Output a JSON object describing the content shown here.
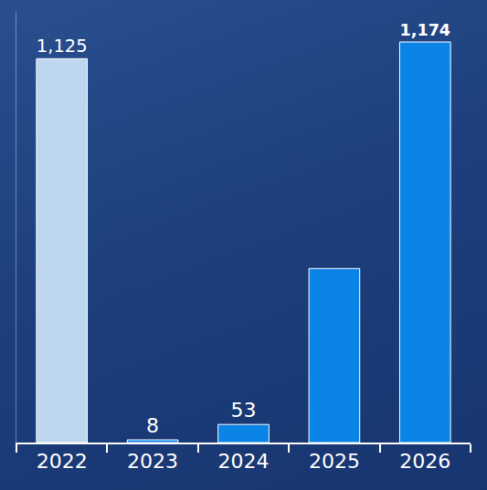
{
  "chart_data": {
    "type": "bar",
    "categories": [
      "2022",
      "2023",
      "2024",
      "2025",
      "2026"
    ],
    "values": [
      1125,
      8,
      53,
      510,
      1174
    ],
    "value_labels": [
      "1,125",
      "8",
      "53",
      null,
      "1,174"
    ],
    "colors": [
      "#bdd7ee",
      "#0a84e6",
      "#0a84e6",
      "#0a84e6",
      "#0a84e6"
    ],
    "ylim": [
      0,
      1265
    ],
    "grid": false,
    "data_labels": true,
    "tick_labels": "x"
  }
}
